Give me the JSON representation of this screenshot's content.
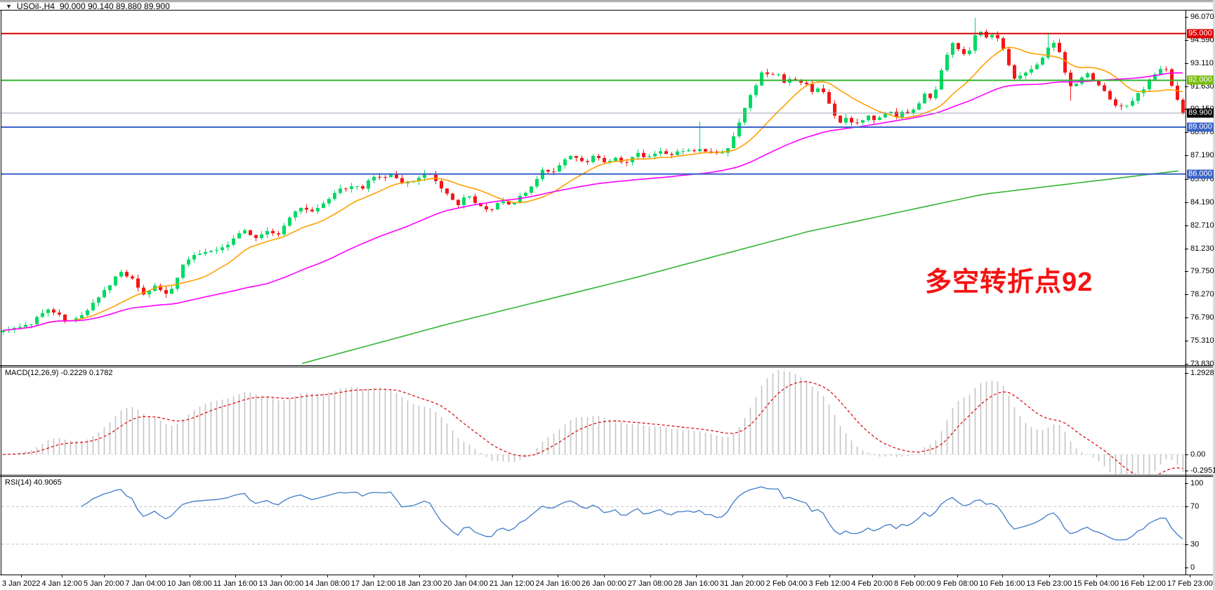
{
  "window": {
    "symbol": "USOil-,H4",
    "ohlc_line": "90.000 90.140 89.880 89.900",
    "ohlc": {
      "open": "90.000",
      "high": "90.140",
      "low": "89.880",
      "close": "89.900"
    }
  },
  "icons": {
    "symbol_dropdown": "▼",
    "current_price_arrow": "left-triangle"
  },
  "colors": {
    "background": "#ffffff",
    "bull_candle": "#00d964",
    "bear_candle": "#f51616",
    "ma_fast": "#ffa000",
    "ma_mid": "#ff00ff",
    "ma_slow": "#33b533",
    "macd_histogram": "#c4c4c4",
    "macd_signal": "#de1414",
    "rsi_line": "#3e7bc8",
    "annotation_red": "#f51212",
    "hline_red": "#de0000",
    "hline_green": "#2fb42f",
    "hline_blue": "#3a62c8",
    "current_price_line": "#98a0b4"
  },
  "price_axis": {
    "labels": [
      {
        "text": "96.070",
        "price": 96.07
      },
      {
        "text": "94.590",
        "price": 94.59
      },
      {
        "text": "93.110",
        "price": 93.11
      },
      {
        "text": "91.630",
        "price": 91.63
      },
      {
        "text": "90.150",
        "price": 90.15
      },
      {
        "text": "88.670",
        "price": 88.67
      },
      {
        "text": "87.190",
        "price": 87.19
      },
      {
        "text": "85.670",
        "price": 85.67
      },
      {
        "text": "84.190",
        "price": 84.19
      },
      {
        "text": "82.710",
        "price": 82.71
      },
      {
        "text": "81.230",
        "price": 81.23
      },
      {
        "text": "79.750",
        "price": 79.75
      },
      {
        "text": "78.270",
        "price": 78.27
      },
      {
        "text": "76.790",
        "price": 76.79
      },
      {
        "text": "75.310",
        "price": 75.31
      },
      {
        "text": "73.830",
        "price": 73.83
      }
    ],
    "badges": [
      {
        "text": "95.000",
        "price": 95.0,
        "bg": "#de0000"
      },
      {
        "text": "92.000",
        "price": 92.0,
        "bg": "#76bd0d"
      },
      {
        "text": "89.900",
        "price": 89.9,
        "bg": "#000000"
      },
      {
        "text": "89.000",
        "price": 89.0,
        "bg": "#3a62c8"
      },
      {
        "text": "86.000",
        "price": 86.0,
        "bg": "#3a62c8"
      }
    ]
  },
  "annotation": {
    "text": "多空转折点92",
    "color": "#f51212"
  },
  "indicators": {
    "macd": {
      "label": "MACD(12,26,9) -0.2229 0.1782",
      "params": [
        12,
        26,
        9
      ],
      "main_value": -0.2229,
      "signal_value": 0.1782,
      "axis": [
        {
          "text": "1.2928",
          "v": 1.2928
        },
        {
          "text": "0.00",
          "v": 0.0
        },
        {
          "text": "-0.2951",
          "v": -0.2951
        }
      ]
    },
    "rsi": {
      "label": "RSI(14) 40.9065",
      "period": 14,
      "value": 40.9065,
      "axis": [
        {
          "text": "100",
          "v": 100
        },
        {
          "text": "70",
          "v": 70
        },
        {
          "text": "30",
          "v": 30
        },
        {
          "text": "0",
          "v": 0
        }
      ],
      "dashed_levels": [
        70,
        30
      ]
    }
  },
  "time_axis": [
    "3 Jan 2022",
    "4 Jan 12:00",
    "5 Jan 20:00",
    "7 Jan 04:00",
    "10 Jan 08:00",
    "11 Jan 16:00",
    "13 Jan 00:00",
    "14 Jan 08:00",
    "17 Jan 12:00",
    "18 Jan 23:00",
    "20 Jan 04:00",
    "21 Jan 12:00",
    "24 Jan 16:00",
    "26 Jan 00:00",
    "27 Jan 08:00",
    "28 Jan 16:00",
    "31 Jan 20:00",
    "2 Feb 04:00",
    "3 Feb 12:00",
    "4 Feb 20:00",
    "8 Feb 00:00",
    "9 Feb 08:00",
    "10 Feb 16:00",
    "13 Feb 23:00",
    "15 Feb 04:00",
    "16 Feb 12:00",
    "17 Feb 23:00"
  ],
  "chart_data": [
    {
      "type": "candlestick",
      "title": "USOil-,H4",
      "timeframe": "H4",
      "current_price": 89.9,
      "ohlc_current": {
        "open": 90.0,
        "high": 90.14,
        "low": 89.88,
        "close": 89.9
      },
      "y_axis_ticks": [
        96.07,
        94.59,
        93.11,
        91.63,
        90.15,
        88.67,
        87.19,
        85.67,
        84.19,
        82.71,
        81.23,
        79.75,
        78.27,
        76.79,
        75.31,
        73.83
      ],
      "hlines": [
        {
          "price": 95.0,
          "color": "#de0000",
          "w": 2
        },
        {
          "price": 92.0,
          "color": "#2fb42f",
          "w": 2
        },
        {
          "price": 89.9,
          "color": "#98a0b4",
          "w": 1
        },
        {
          "price": 89.0,
          "color": "#3a62c8",
          "w": 2
        },
        {
          "price": 86.0,
          "color": "#3a62c8",
          "w": 2
        }
      ],
      "price_anchors": [
        [
          0,
          75.9
        ],
        [
          40,
          76.3
        ],
        [
          70,
          77.4
        ],
        [
          95,
          76.5
        ],
        [
          120,
          77.0
        ],
        [
          150,
          78.6
        ],
        [
          170,
          79.8
        ],
        [
          190,
          79.2
        ],
        [
          205,
          78.2
        ],
        [
          220,
          78.9
        ],
        [
          240,
          78.2
        ],
        [
          258,
          80.0
        ],
        [
          275,
          80.8
        ],
        [
          300,
          81.1
        ],
        [
          320,
          81.3
        ],
        [
          345,
          82.4
        ],
        [
          362,
          81.9
        ],
        [
          378,
          82.3
        ],
        [
          395,
          82.1
        ],
        [
          412,
          83.2
        ],
        [
          430,
          84.0
        ],
        [
          445,
          83.5
        ],
        [
          462,
          84.2
        ],
        [
          480,
          84.9
        ],
        [
          500,
          85.3
        ],
        [
          515,
          85.0
        ],
        [
          530,
          85.9
        ],
        [
          545,
          85.7
        ],
        [
          560,
          86.0
        ],
        [
          575,
          85.3
        ],
        [
          592,
          85.7
        ],
        [
          607,
          86.1
        ],
        [
          622,
          85.4
        ],
        [
          637,
          84.7
        ],
        [
          652,
          84.1
        ],
        [
          666,
          84.7
        ],
        [
          680,
          84.0
        ],
        [
          696,
          83.6
        ],
        [
          710,
          84.3
        ],
        [
          726,
          83.9
        ],
        [
          742,
          84.6
        ],
        [
          757,
          85.3
        ],
        [
          772,
          86.3
        ],
        [
          786,
          86.0
        ],
        [
          801,
          86.8
        ],
        [
          816,
          87.2
        ],
        [
          830,
          86.7
        ],
        [
          845,
          87.1
        ],
        [
          860,
          86.8
        ],
        [
          876,
          87.0
        ],
        [
          890,
          86.7
        ],
        [
          906,
          87.3
        ],
        [
          920,
          87.0
        ],
        [
          936,
          87.5
        ],
        [
          950,
          87.2
        ],
        [
          966,
          87.4
        ],
        [
          980,
          87.6
        ],
        [
          996,
          87.5
        ],
        [
          1010,
          87.4
        ],
        [
          1026,
          87.2
        ],
        [
          1040,
          87.9
        ],
        [
          1056,
          89.9
        ],
        [
          1070,
          91.2
        ],
        [
          1086,
          92.6
        ],
        [
          1096,
          92.2
        ],
        [
          1106,
          92.5
        ],
        [
          1116,
          91.9
        ],
        [
          1126,
          92.2
        ],
        [
          1136,
          91.7
        ],
        [
          1146,
          91.9
        ],
        [
          1156,
          91.3
        ],
        [
          1166,
          91.6
        ],
        [
          1176,
          91.1
        ],
        [
          1186,
          89.8
        ],
        [
          1196,
          89.3
        ],
        [
          1206,
          89.7
        ],
        [
          1216,
          89.1
        ],
        [
          1226,
          89.4
        ],
        [
          1236,
          89.7
        ],
        [
          1246,
          89.3
        ],
        [
          1256,
          89.8
        ],
        [
          1266,
          90.1
        ],
        [
          1276,
          89.7
        ],
        [
          1286,
          90.0
        ],
        [
          1296,
          89.8
        ],
        [
          1306,
          90.4
        ],
        [
          1316,
          91.1
        ],
        [
          1326,
          90.7
        ],
        [
          1336,
          91.9
        ],
        [
          1346,
          93.6
        ],
        [
          1356,
          94.3
        ],
        [
          1366,
          93.9
        ],
        [
          1376,
          93.4
        ],
        [
          1386,
          94.7
        ],
        [
          1396,
          95.2
        ],
        [
          1406,
          94.7
        ],
        [
          1416,
          94.9
        ],
        [
          1426,
          94.3
        ],
        [
          1436,
          92.9
        ],
        [
          1446,
          92.0
        ],
        [
          1456,
          92.4
        ],
        [
          1466,
          92.7
        ],
        [
          1476,
          93.1
        ],
        [
          1486,
          93.6
        ],
        [
          1496,
          94.6
        ],
        [
          1506,
          94.1
        ],
        [
          1516,
          92.4
        ],
        [
          1526,
          91.5
        ],
        [
          1536,
          92.1
        ],
        [
          1546,
          92.5
        ],
        [
          1556,
          91.9
        ],
        [
          1566,
          91.7
        ],
        [
          1576,
          91.0
        ],
        [
          1586,
          90.5
        ],
        [
          1600,
          90.3
        ],
        [
          1615,
          90.9
        ],
        [
          1630,
          91.6
        ],
        [
          1645,
          92.5
        ],
        [
          1658,
          92.9
        ],
        [
          1670,
          91.4
        ],
        [
          1678,
          90.6
        ],
        [
          1684,
          89.9
        ]
      ],
      "wick_events": [
        [
          16,
          "low",
          74.5
        ],
        [
          696,
          "low",
          82.25
        ],
        [
          998,
          "high",
          89.35
        ],
        [
          1390,
          "high",
          96.0
        ],
        [
          1494,
          "high",
          95.05
        ],
        [
          1526,
          "low",
          90.7
        ]
      ],
      "ma_slow_anchors": [
        [
          430,
          73.85
        ],
        [
          640,
          76.4
        ],
        [
          900,
          79.3
        ],
        [
          1150,
          82.3
        ],
        [
          1400,
          84.7
        ],
        [
          1688,
          86.25
        ]
      ],
      "ma_fast_window": 13,
      "ma_mid_window": 48
    },
    {
      "type": "bar",
      "subtype": "macd",
      "label": "MACD(12,26,9) -0.2229 0.1782",
      "scale_max": 1.2928,
      "scale_min": -0.2951,
      "zero_label": "0.00"
    },
    {
      "type": "line",
      "subtype": "rsi",
      "label": "RSI(14) 40.9065",
      "levels": [
        100,
        70,
        30,
        0
      ],
      "last_value": 40.9065
    }
  ]
}
